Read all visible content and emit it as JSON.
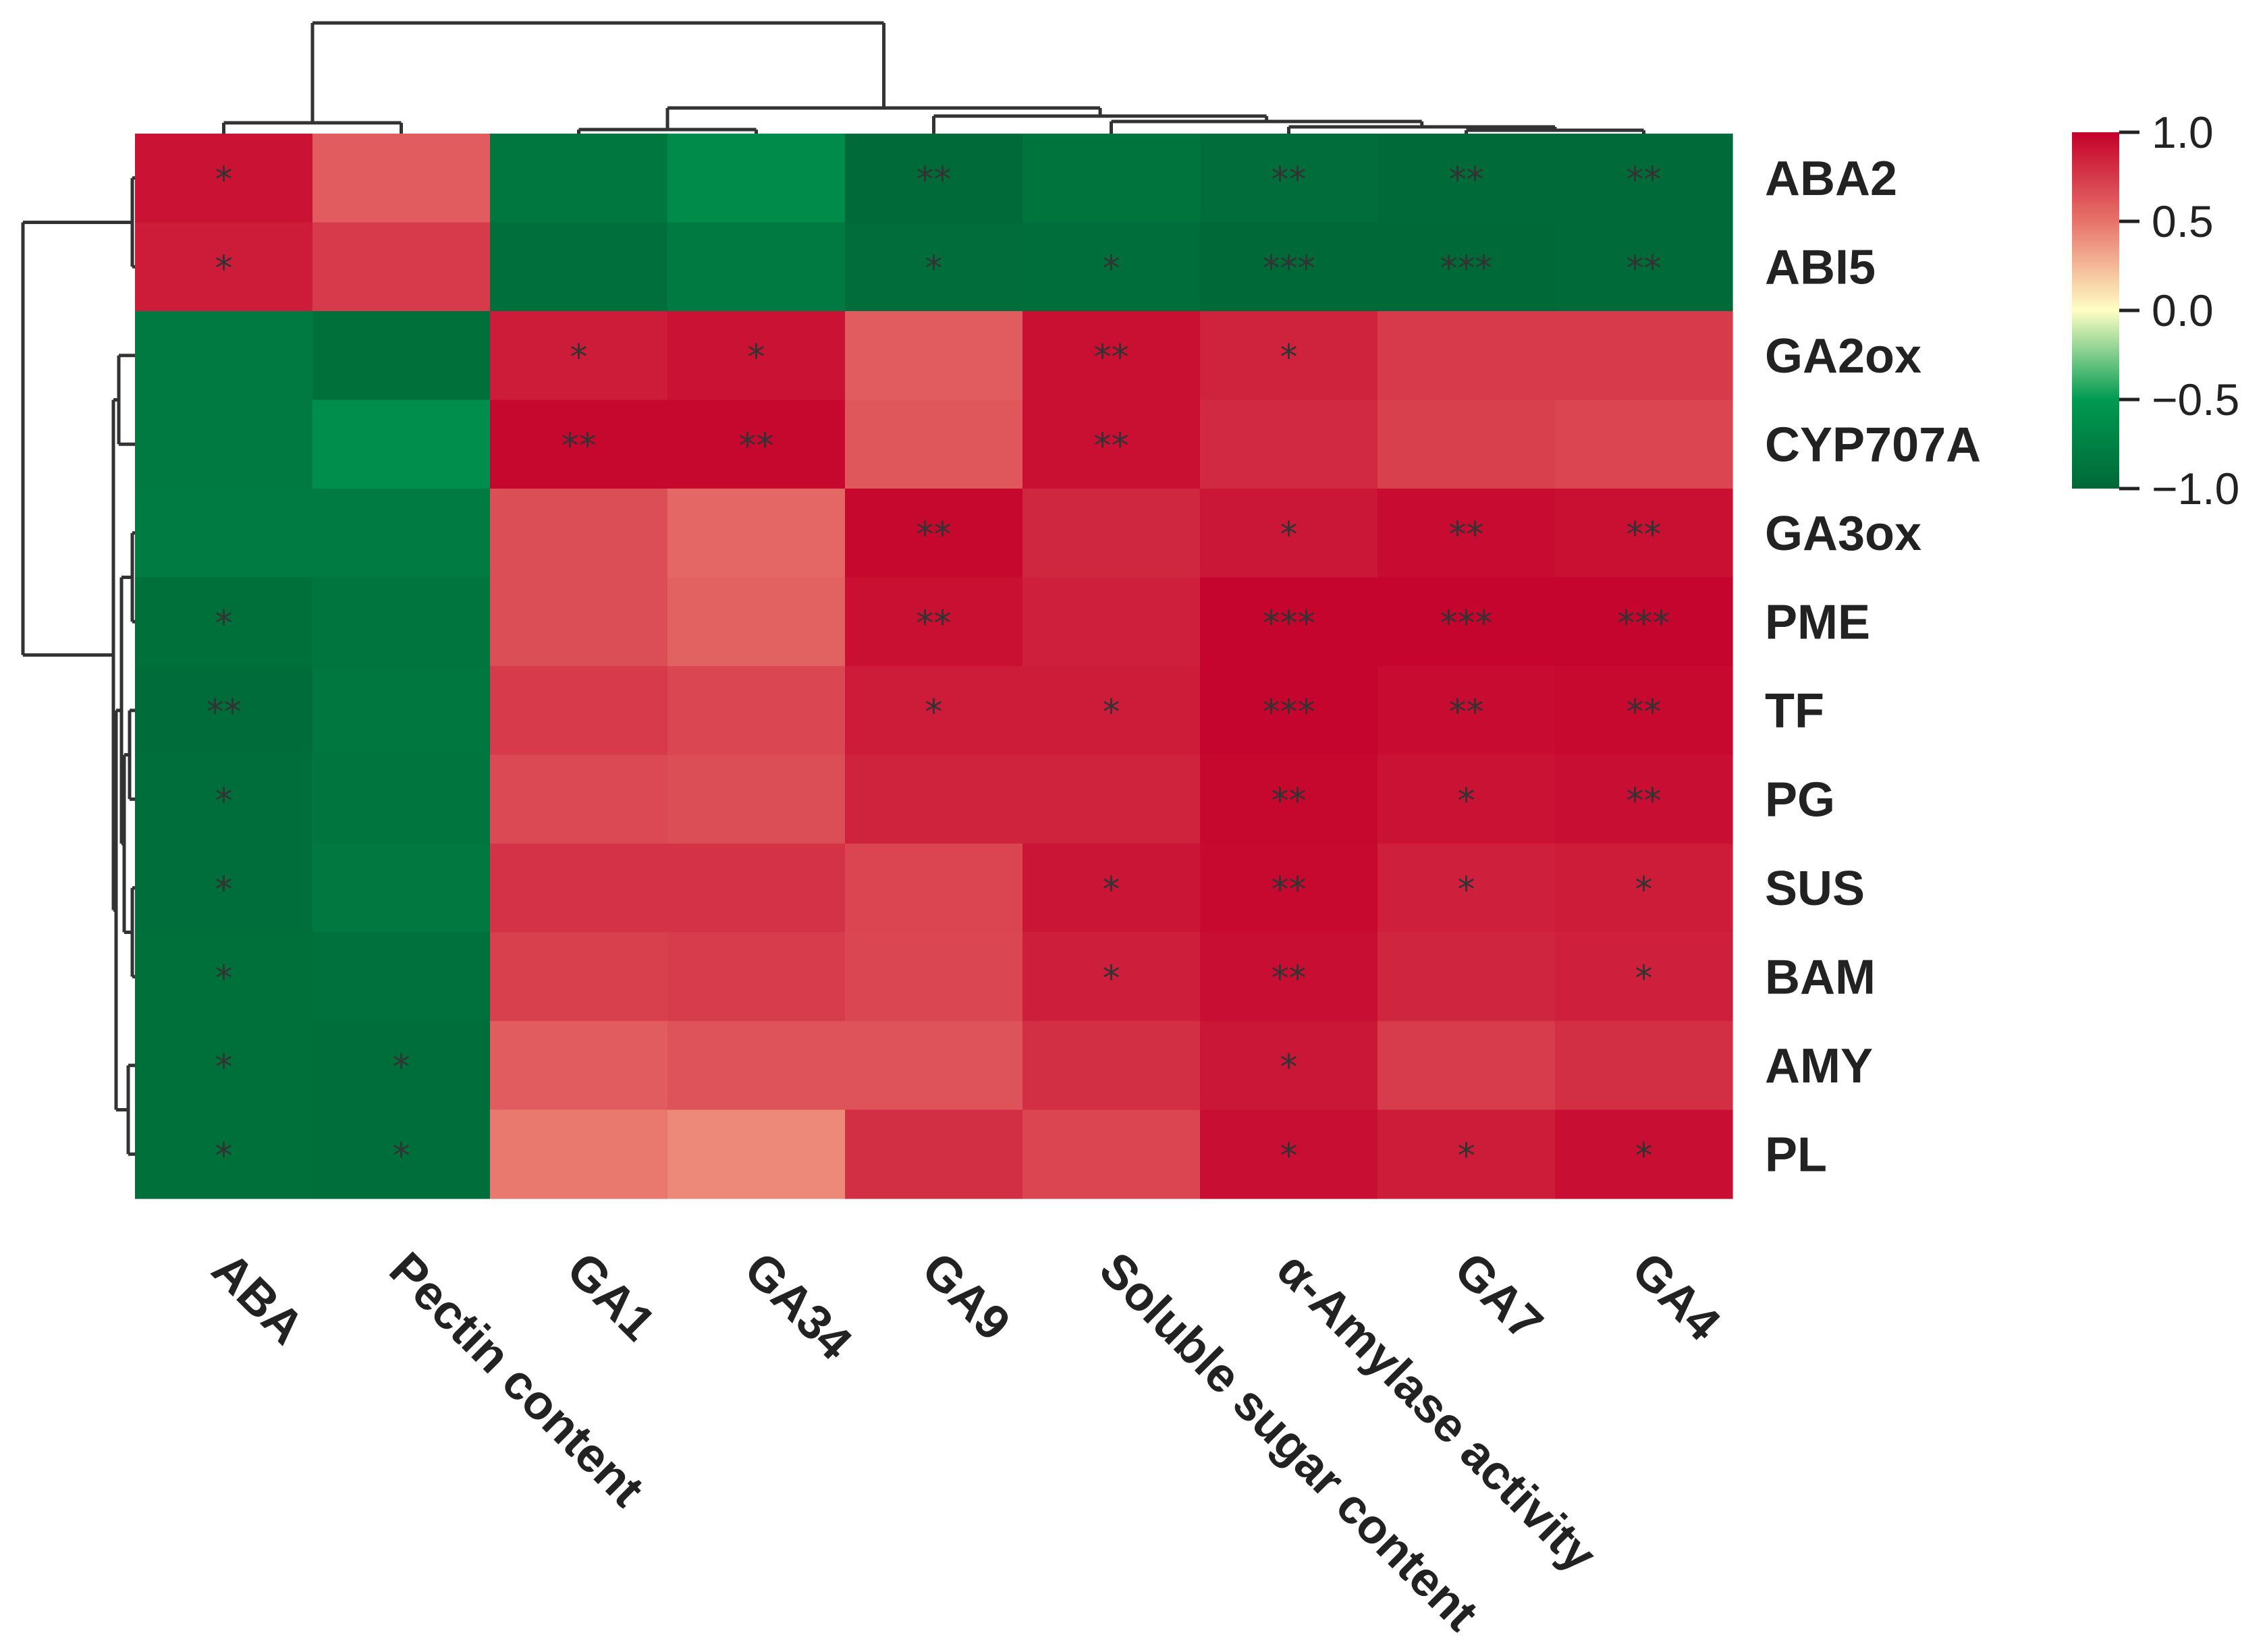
{
  "chart_data": {
    "type": "heatmap",
    "title": "",
    "rows": [
      "ABA2",
      "ABI5",
      "GA2ox",
      "CYP707A",
      "GA3ox",
      "PME",
      "TF",
      "PG",
      "SUS",
      "BAM",
      "AMY",
      "PL"
    ],
    "columns": [
      "ABA",
      "Pectin content",
      "GA1",
      "GA34",
      "GA9",
      "Soluble sugar content",
      "α-Amylase activity",
      "GA7",
      "GA4"
    ],
    "values": [
      [
        0.92,
        0.6,
        -0.85,
        -0.65,
        -0.97,
        -0.88,
        -0.95,
        -0.98,
        -0.97
      ],
      [
        0.88,
        0.75,
        -0.93,
        -0.82,
        -0.95,
        -0.94,
        -0.99,
        -0.99,
        -0.97
      ],
      [
        -0.82,
        -0.92,
        0.88,
        0.92,
        0.6,
        0.93,
        0.85,
        0.75,
        0.75
      ],
      [
        -0.82,
        -0.62,
        0.97,
        0.97,
        0.62,
        0.93,
        0.82,
        0.72,
        0.7
      ],
      [
        -0.8,
        -0.8,
        0.66,
        0.55,
        0.97,
        0.83,
        0.9,
        0.95,
        0.93
      ],
      [
        -0.92,
        -0.86,
        0.66,
        0.58,
        0.93,
        0.86,
        0.98,
        0.98,
        0.98
      ],
      [
        -0.96,
        -0.85,
        0.75,
        0.69,
        0.88,
        0.88,
        0.98,
        0.95,
        0.96
      ],
      [
        -0.94,
        -0.86,
        0.68,
        0.66,
        0.85,
        0.85,
        0.97,
        0.92,
        0.94
      ],
      [
        -0.94,
        -0.84,
        0.78,
        0.78,
        0.7,
        0.91,
        0.96,
        0.86,
        0.88
      ],
      [
        -0.92,
        -0.91,
        0.72,
        0.74,
        0.69,
        0.87,
        0.94,
        0.84,
        0.86
      ],
      [
        -0.92,
        -0.94,
        0.6,
        0.64,
        0.64,
        0.8,
        0.9,
        0.74,
        0.8
      ],
      [
        -0.92,
        -0.94,
        0.48,
        0.42,
        0.8,
        0.7,
        0.94,
        0.88,
        0.94
      ]
    ],
    "significance": [
      [
        "*",
        "",
        "",
        "",
        "**",
        "",
        "**",
        "**",
        "**"
      ],
      [
        "*",
        "",
        "",
        "",
        "*",
        "*",
        "***",
        "***",
        "**"
      ],
      [
        "",
        "",
        "*",
        "*",
        "",
        "**",
        "*",
        "",
        ""
      ],
      [
        "",
        "",
        "**",
        "**",
        "",
        "**",
        "",
        "",
        ""
      ],
      [
        "",
        "",
        "",
        "",
        "**",
        "",
        "*",
        "**",
        "**"
      ],
      [
        "*",
        "",
        "",
        "",
        "**",
        "",
        "***",
        "***",
        "***"
      ],
      [
        "**",
        "",
        "",
        "",
        "*",
        "*",
        "***",
        "**",
        "**"
      ],
      [
        "*",
        "",
        "",
        "",
        "",
        "",
        "**",
        "*",
        "**"
      ],
      [
        "*",
        "",
        "",
        "",
        "",
        "*",
        "**",
        "*",
        "*"
      ],
      [
        "*",
        "",
        "",
        "",
        "",
        "*",
        "**",
        "",
        "*"
      ],
      [
        "*",
        "*",
        "",
        "",
        "",
        "",
        "*",
        "",
        ""
      ],
      [
        "*",
        "*",
        "",
        "",
        "",
        "",
        "*",
        "*",
        "*"
      ]
    ],
    "colorbar": {
      "range": [
        -1.0,
        1.0
      ],
      "ticks": [
        1.0,
        0.5,
        0.0,
        -0.5,
        -1.0
      ],
      "tick_labels": [
        "1.0",
        "0.5",
        "0.0",
        "−0.5",
        "−1.0"
      ],
      "colors": [
        "#006837",
        "#009a52",
        "#fefec4",
        "#e8736b",
        "#c4002a"
      ]
    },
    "legend": "right",
    "row_dendrogram": "left",
    "column_dendrogram": "top"
  }
}
